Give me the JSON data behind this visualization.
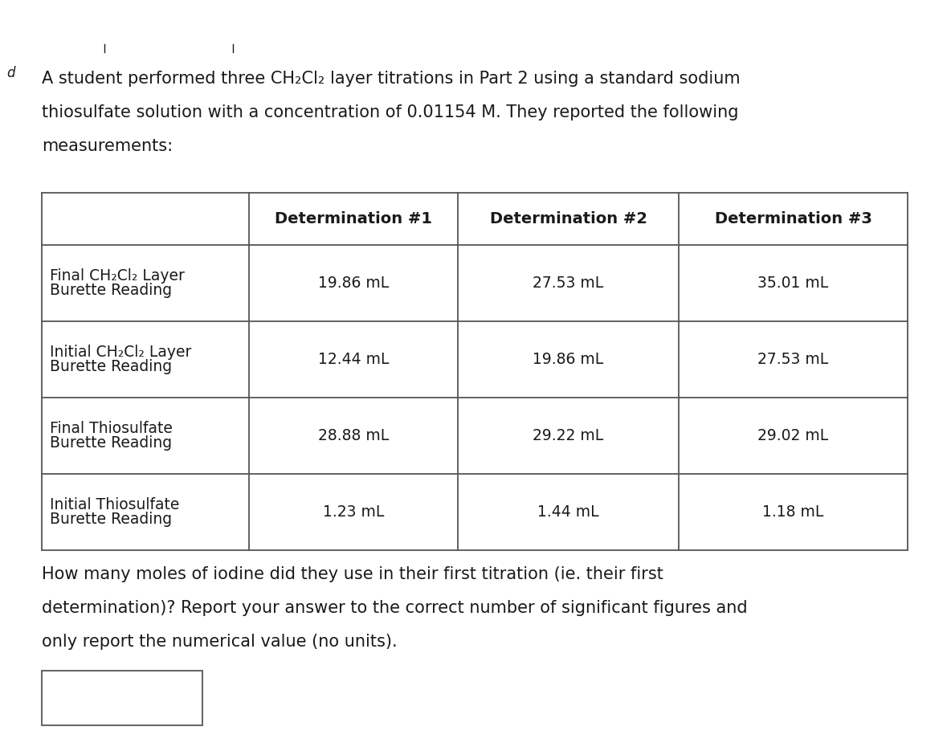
{
  "intro_text_line1": "A student performed three CH₂Cl₂ layer titrations in Part 2 using a standard sodium",
  "intro_text_line2": "thiosulfate solution with a concentration of 0.01154 M. They reported the following",
  "intro_text_line3": "measurements:",
  "col_headers": [
    "",
    "Determination #1",
    "Determination #2",
    "Determination #3"
  ],
  "row_labels": [
    [
      "Final CH₂Cl₂ Layer",
      "Burette Reading"
    ],
    [
      "Initial CH₂Cl₂ Layer",
      "Burette Reading"
    ],
    [
      "Final Thiosulfate",
      "Burette Reading"
    ],
    [
      "Initial Thiosulfate",
      "Burette Reading"
    ]
  ],
  "table_data": [
    [
      "19.86 mL",
      "27.53 mL",
      "35.01 mL"
    ],
    [
      "12.44 mL",
      "19.86 mL",
      "27.53 mL"
    ],
    [
      "28.88 mL",
      "29.22 mL",
      "29.02 mL"
    ],
    [
      "1.23 mL",
      "1.44 mL",
      "1.18 mL"
    ]
  ],
  "question_line1": "How many moles of iodine did they use in their first titration (ie. their first",
  "question_line2": "determination)? Report your answer to the correct number of significant figures and",
  "question_line3": "only report the numerical value (no units).",
  "bg_color": "#ffffff",
  "text_color": "#1a1a1a",
  "table_border_color": "#555555",
  "header_font_size": 14,
  "body_font_size": 13.5,
  "intro_font_size": 15,
  "question_font_size": 15
}
